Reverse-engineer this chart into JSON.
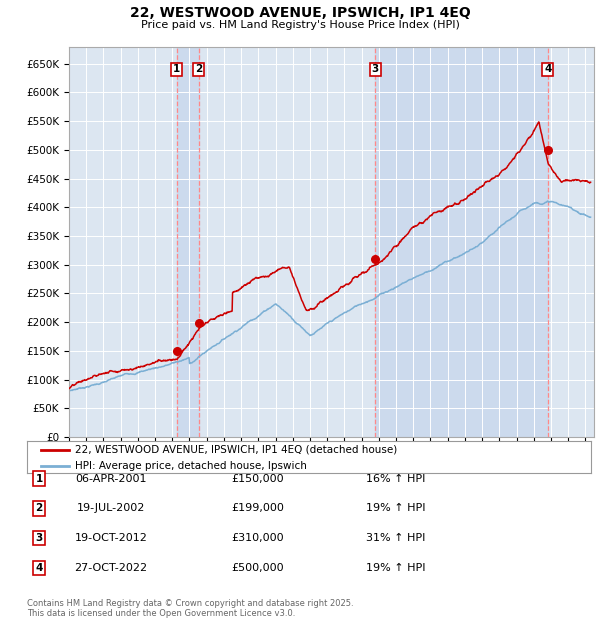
{
  "title": "22, WESTWOOD AVENUE, IPSWICH, IP1 4EQ",
  "subtitle": "Price paid vs. HM Land Registry's House Price Index (HPI)",
  "background_color": "#ffffff",
  "plot_bg_color": "#dce6f1",
  "ylim": [
    0,
    680000
  ],
  "xlim_start": 1995.0,
  "xlim_end": 2025.5,
  "transactions": [
    {
      "num": 1,
      "date_str": "06-APR-2001",
      "year": 2001.27,
      "price": 150000,
      "pct": "16%",
      "dir": "↑"
    },
    {
      "num": 2,
      "date_str": "19-JUL-2002",
      "year": 2002.55,
      "price": 199000,
      "pct": "19%",
      "dir": "↑"
    },
    {
      "num": 3,
      "date_str": "19-OCT-2012",
      "year": 2012.8,
      "price": 310000,
      "pct": "31%",
      "dir": "↑"
    },
    {
      "num": 4,
      "date_str": "27-OCT-2022",
      "year": 2022.82,
      "price": 500000,
      "pct": "19%",
      "dir": "↑"
    }
  ],
  "legend_label_red": "22, WESTWOOD AVENUE, IPSWICH, IP1 4EQ (detached house)",
  "legend_label_blue": "HPI: Average price, detached house, Ipswich",
  "footer": "Contains HM Land Registry data © Crown copyright and database right 2025.\nThis data is licensed under the Open Government Licence v3.0.",
  "red_color": "#cc0000",
  "blue_color": "#7bafd4",
  "vline_color": "#ff8888",
  "vband_color": "#c8d8ec",
  "grid_color": "#ffffff"
}
